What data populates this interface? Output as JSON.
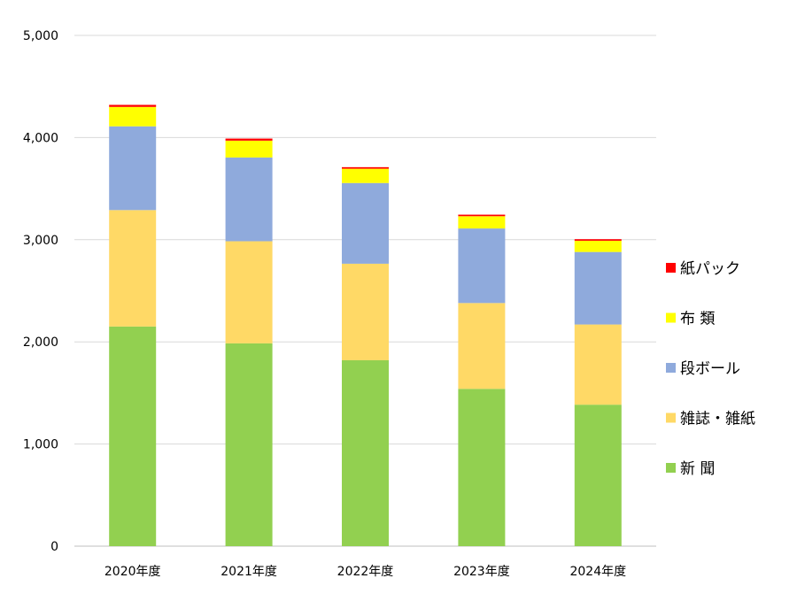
{
  "chart_data": {
    "type": "bar",
    "stacked": true,
    "categories": [
      "2020年度",
      "2021年度",
      "2022年度",
      "2023年度",
      "2024年度"
    ],
    "ylim": [
      0,
      5000
    ],
    "yticks": [
      "0",
      "1,000",
      "2,000",
      "3,000",
      "4,000",
      "5,000"
    ],
    "ytick_values": [
      0,
      1000,
      2000,
      3000,
      4000,
      5000
    ],
    "grid": true,
    "legend": "right",
    "series": [
      {
        "name": "新 聞",
        "color": "#92d050",
        "values": [
          2150,
          1985,
          1820,
          1540,
          1385
        ]
      },
      {
        "name": "雑誌・雑紙",
        "color": "#ffd966",
        "values": [
          1140,
          1000,
          945,
          840,
          785
        ]
      },
      {
        "name": "段ボール",
        "color": "#8faadc",
        "values": [
          820,
          820,
          790,
          730,
          710
        ]
      },
      {
        "name": "布 類",
        "color": "#ffff00",
        "values": [
          190,
          165,
          140,
          120,
          110
        ]
      },
      {
        "name": "紙パック",
        "color": "#ff0000",
        "values": [
          20,
          20,
          15,
          15,
          15
        ]
      }
    ]
  }
}
